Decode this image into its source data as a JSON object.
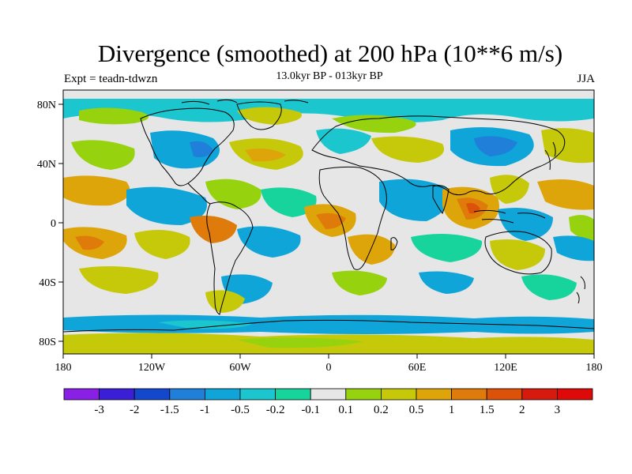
{
  "title": "Divergence (smoothed) at 200 hPa (10**6 m/s)",
  "subtitle": "13.0kyr BP - 013kyr BP",
  "experiment": "Expt = teadn-tdwzn",
  "season": "JJA",
  "axes": {
    "x_ticks": [
      "180",
      "120W",
      "60W",
      "0",
      "60E",
      "120E",
      "180"
    ],
    "y_ticks": [
      "80N",
      "40N",
      "0",
      "40S",
      "80S"
    ]
  },
  "colorbar": {
    "labels": [
      "-3",
      "-2",
      "-1.5",
      "-1",
      "-0.5",
      "-0.2",
      "-0.1",
      "0.1",
      "0.2",
      "0.5",
      "1",
      "1.5",
      "2",
      "3"
    ],
    "colors": [
      "#8a1fe6",
      "#3a1fd6",
      "#1448cc",
      "#1f7fd9",
      "#0fa5d8",
      "#1bc6cf",
      "#17d49c",
      "#e6e6e6",
      "#96d20e",
      "#c6c80a",
      "#dea50a",
      "#de7b0a",
      "#dc5208",
      "#d61a0e",
      "#de0a0a"
    ]
  },
  "map_colors": {
    "land_line": "#000000",
    "background": "#e6e6e6"
  }
}
